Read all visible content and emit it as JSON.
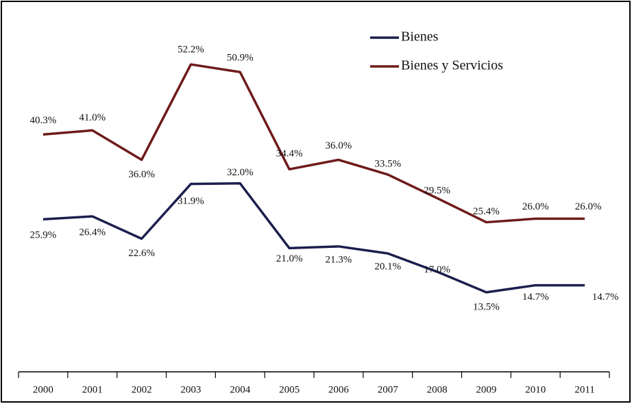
{
  "chart_data": {
    "type": "line",
    "categories": [
      "2000",
      "2001",
      "2002",
      "2003",
      "2004",
      "2005",
      "2006",
      "2007",
      "2008",
      "2009",
      "2010",
      "2011"
    ],
    "series": [
      {
        "name": "Bienes",
        "color": "#1c1f4d",
        "values": [
          25.9,
          26.4,
          22.6,
          31.9,
          32.0,
          21.0,
          21.3,
          20.1,
          17.0,
          13.5,
          14.7,
          14.7
        ],
        "value_labels": [
          "25.9%",
          "26.4%",
          "22.6%",
          "31.9%",
          "32.0%",
          "21.0%",
          "21.3%",
          "20.1%",
          "17.0%",
          "13.5%",
          "14.7%",
          "14.7%"
        ]
      },
      {
        "name": "Bienes y Servicios",
        "color": "#6e1a1a",
        "values": [
          40.3,
          41.0,
          36.0,
          52.2,
          50.9,
          34.4,
          36.0,
          33.5,
          29.5,
          25.4,
          26.0,
          26.0
        ],
        "value_labels": [
          "40.3%",
          "41.0%",
          "36.0%",
          "52.2%",
          "50.9%",
          "34.4%",
          "36.0%",
          "33.5%",
          "29.5%",
          "25.4%",
          "26.0%",
          "26.0%"
        ]
      }
    ],
    "ylim": [
      0,
      60
    ],
    "legend": "upper right"
  }
}
